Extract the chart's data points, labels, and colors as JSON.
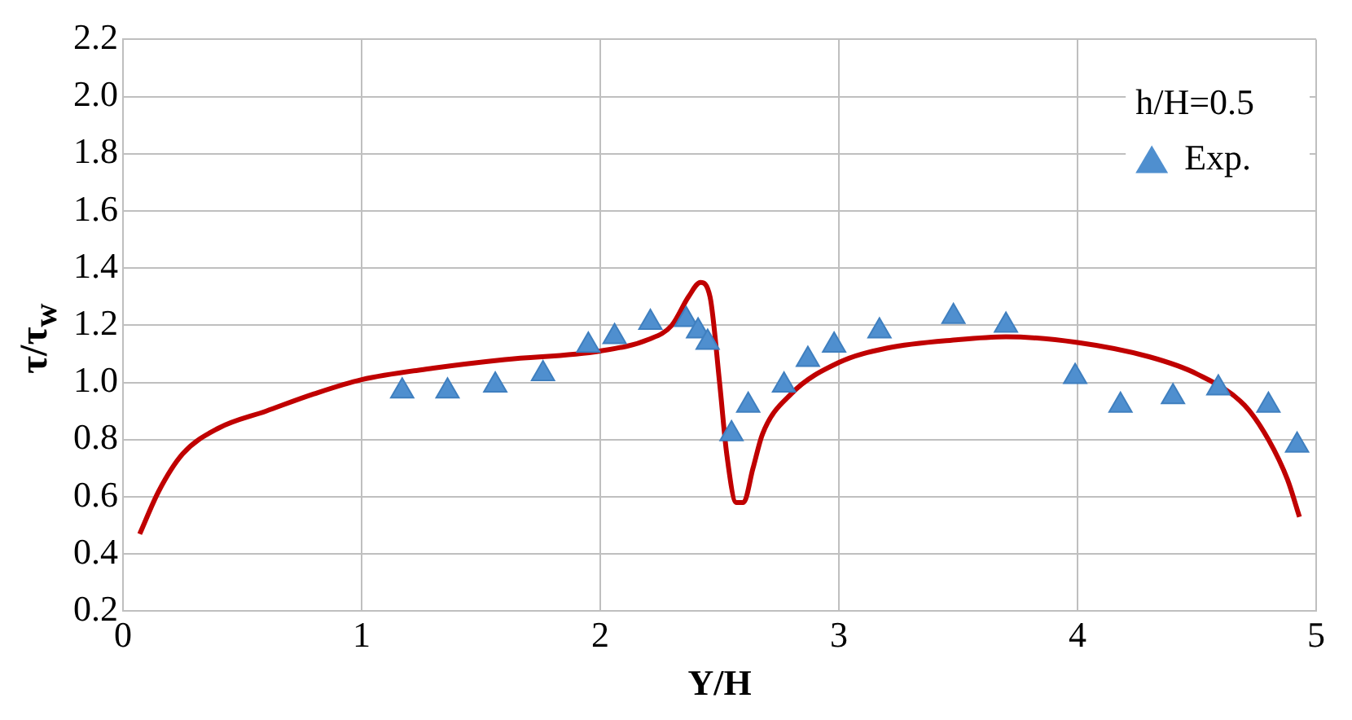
{
  "chart_data": {
    "type": "line",
    "xlabel": "Y/H",
    "ylabel": "τ/τ$_{w}$",
    "legend_title": "h/H=0.5",
    "legend": "top right",
    "grid": true,
    "xlim": [
      0,
      5
    ],
    "xticks": [
      0,
      1,
      2,
      3,
      4,
      5
    ],
    "ylim": [
      0.2,
      2.2
    ],
    "yticks": [
      0.2,
      0.4,
      0.6,
      0.8,
      {
        "value": 1,
        "label": "1.0"
      },
      1.2,
      1.4,
      1.6,
      1.8,
      {
        "value": 2,
        "label": "2.0"
      },
      2.2
    ],
    "series": [
      {
        "name": "Exp.",
        "type": "scatter",
        "marker": "triangle",
        "color": "#4f8fcf",
        "x": [
          1.17,
          1.36,
          1.56,
          1.76,
          1.95,
          2.06,
          2.21,
          2.36,
          2.41,
          2.45,
          2.55,
          2.62,
          2.77,
          2.87,
          2.98,
          3.17,
          3.48,
          3.7,
          3.99,
          4.18,
          4.4,
          4.59,
          4.8,
          4.92
        ],
        "values": [
          0.97,
          0.97,
          0.99,
          1.03,
          1.13,
          1.16,
          1.21,
          1.22,
          1.18,
          1.14,
          0.82,
          0.92,
          0.99,
          1.08,
          1.13,
          1.18,
          1.23,
          1.2,
          1.02,
          0.92,
          0.95,
          0.98,
          0.92,
          0.78
        ]
      },
      {
        "marker": "none",
        "line_style": "solid",
        "color": "#c00000",
        "x": [
          0.07,
          0.15,
          0.25,
          0.4,
          0.6,
          0.8,
          1.0,
          1.3,
          1.6,
          2.0,
          2.2,
          2.3,
          2.37,
          2.42,
          2.46,
          2.5,
          2.53,
          2.57,
          2.6,
          2.64,
          2.68,
          2.8,
          3.0,
          3.2,
          3.5,
          3.7,
          4.0,
          4.3,
          4.5,
          4.7,
          4.8,
          4.88,
          4.93
        ],
        "values": [
          0.47,
          0.62,
          0.75,
          0.84,
          0.9,
          0.96,
          1.01,
          1.05,
          1.08,
          1.11,
          1.15,
          1.2,
          1.3,
          1.35,
          1.3,
          1.0,
          0.75,
          0.58,
          0.58,
          0.7,
          0.82,
          0.96,
          1.07,
          1.12,
          1.15,
          1.16,
          1.14,
          1.09,
          1.03,
          0.92,
          0.8,
          0.66,
          0.53
        ]
      }
    ]
  }
}
